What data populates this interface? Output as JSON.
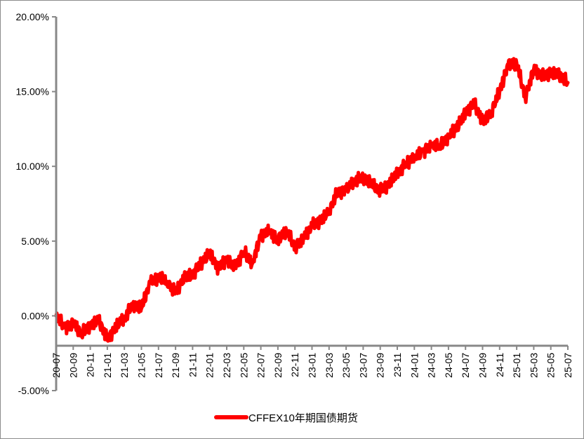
{
  "chart_data": {
    "type": "line",
    "x_tick_labels": [
      "20-07",
      "20-09",
      "20-11",
      "21-01",
      "21-03",
      "21-05",
      "21-07",
      "21-09",
      "21-11",
      "22-01",
      "22-03",
      "22-05",
      "22-07",
      "22-09",
      "22-11",
      "23-01",
      "23-03",
      "23-05",
      "23-07",
      "23-09",
      "23-11",
      "24-01",
      "24-03",
      "24-05",
      "24-07",
      "24-09",
      "24-11",
      "25-01",
      "25-03",
      "25-05",
      "25-07"
    ],
    "y_tick_labels": [
      "20.00%",
      "15.00%",
      "10.00%",
      "5.00%",
      "0.00%",
      "-5.00%"
    ],
    "ylim": [
      -5,
      20
    ],
    "legend_position": "bottom-center",
    "grid": false,
    "series": [
      {
        "name": "CFFEX10年期国债期货",
        "color": "#ff0000",
        "x": [
          "2020-07",
          "2020-08",
          "2020-09",
          "2020-10",
          "2020-11",
          "2020-12",
          "2021-01",
          "2021-02",
          "2021-03",
          "2021-04",
          "2021-05",
          "2021-06",
          "2021-07",
          "2021-08",
          "2021-09",
          "2021-10",
          "2021-11",
          "2021-12",
          "2022-01",
          "2022-02",
          "2022-03",
          "2022-04",
          "2022-05",
          "2022-06",
          "2022-07",
          "2022-08",
          "2022-09",
          "2022-10",
          "2022-11",
          "2022-12",
          "2023-01",
          "2023-02",
          "2023-03",
          "2023-04",
          "2023-05",
          "2023-06",
          "2023-07",
          "2023-08",
          "2023-09",
          "2023-10",
          "2023-11",
          "2023-12",
          "2024-01",
          "2024-02",
          "2024-03",
          "2024-04",
          "2024-05",
          "2024-06",
          "2024-07",
          "2024-08",
          "2024-09",
          "2024-10",
          "2024-11",
          "2024-12",
          "2025-01",
          "2025-02",
          "2025-03",
          "2025-04",
          "2025-05",
          "2025-06",
          "2025-07"
        ],
        "values": [
          0.0,
          -0.8,
          -0.5,
          -1.2,
          -0.6,
          -0.3,
          -1.6,
          -0.7,
          -0.2,
          0.8,
          0.5,
          2.2,
          2.6,
          2.3,
          1.6,
          2.5,
          2.8,
          3.5,
          4.2,
          3.2,
          3.7,
          3.3,
          4.3,
          3.5,
          5.4,
          5.6,
          5.1,
          5.7,
          4.6,
          5.2,
          6.0,
          6.4,
          7.0,
          8.3,
          8.4,
          9.0,
          9.3,
          8.8,
          8.4,
          8.8,
          9.5,
          10.2,
          10.6,
          11.0,
          11.3,
          11.4,
          12.0,
          12.6,
          13.6,
          14.2,
          13.0,
          13.6,
          15.0,
          16.8,
          16.9,
          14.6,
          16.5,
          16.0,
          16.3,
          16.1,
          15.6
        ]
      }
    ]
  }
}
